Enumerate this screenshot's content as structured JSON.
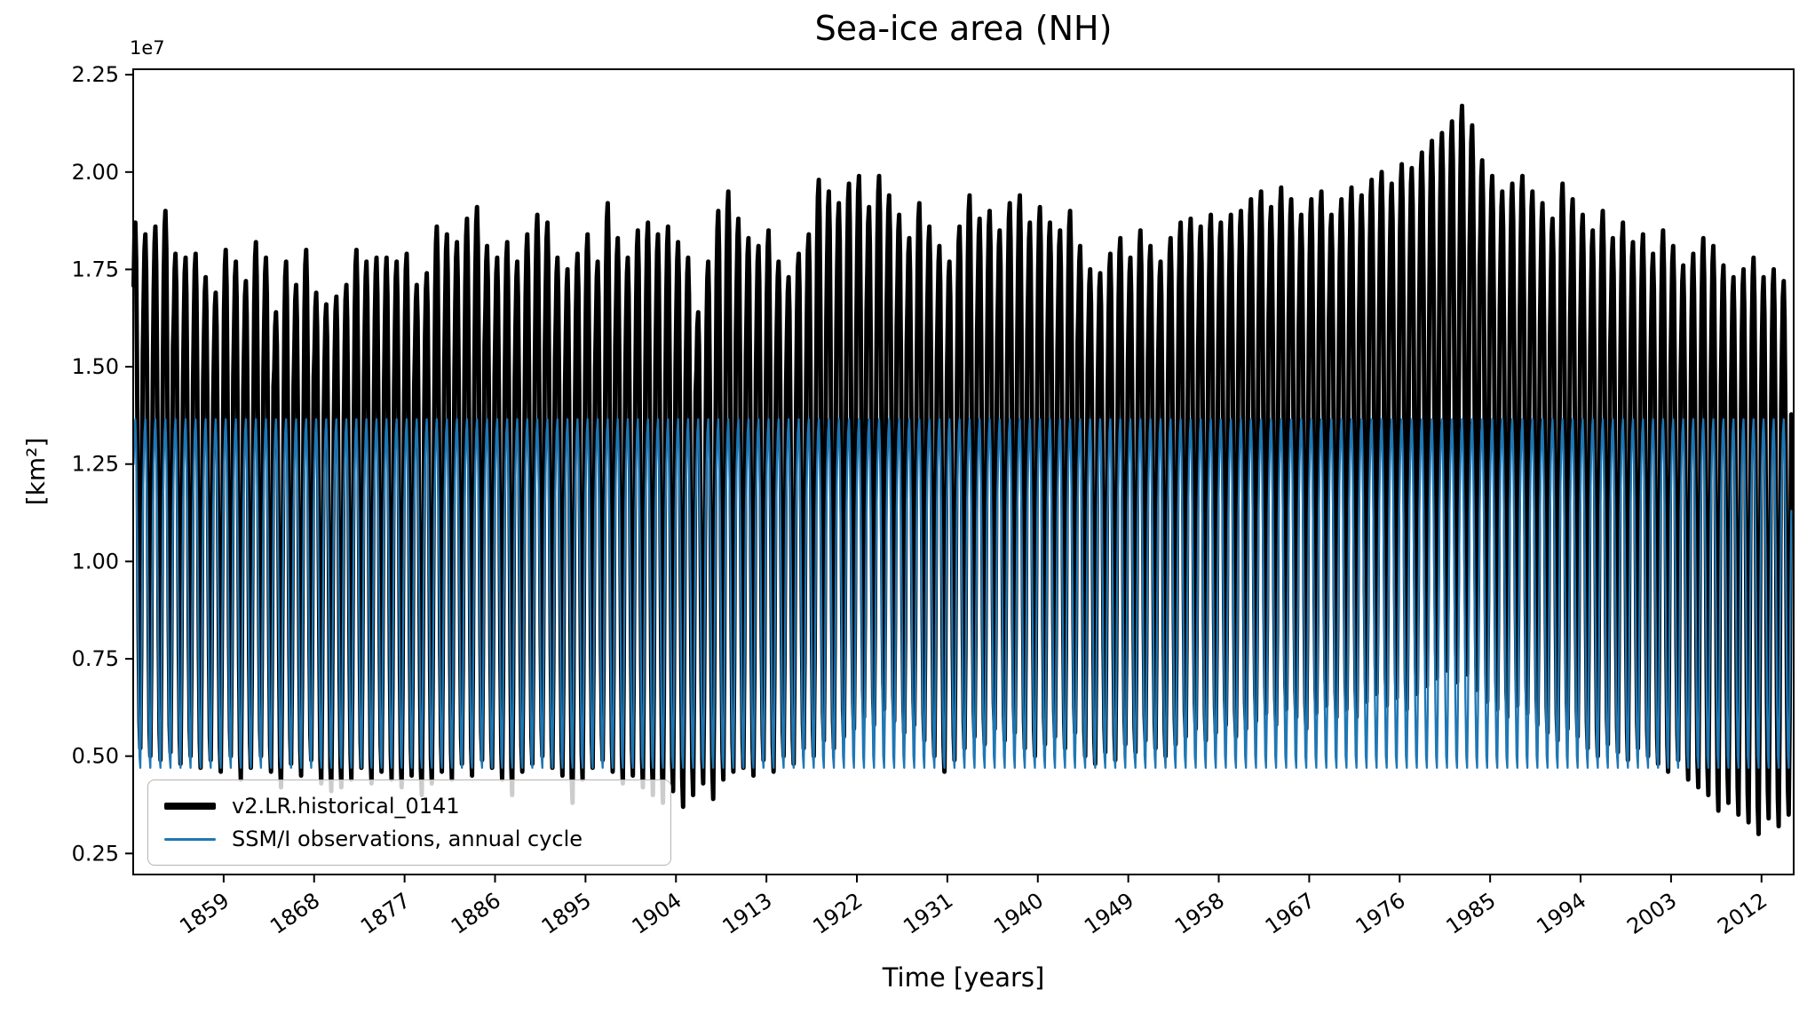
{
  "chart_data": {
    "type": "line",
    "title": "Sea-ice area (NH)",
    "xlabel": "Time [years]",
    "ylabel": "[km²]",
    "y_offset_label": "1e7",
    "y_unit": "km², values in units of 1e7",
    "grid": false,
    "legend_position": "lower left",
    "xlim": [
      1850,
      2015.2
    ],
    "ylim": [
      0.196,
      2.264
    ],
    "x_ticks": [
      1859,
      1868,
      1877,
      1886,
      1895,
      1904,
      1913,
      1922,
      1931,
      1940,
      1949,
      1958,
      1967,
      1976,
      1985,
      1994,
      2003,
      2012
    ],
    "y_ticks": [
      0.25,
      0.5,
      0.75,
      1.0,
      1.25,
      1.5,
      1.75,
      2.0,
      2.25
    ],
    "series": [
      {
        "name": "v2.LR.historical_0141",
        "color": "#000000",
        "linewidth": 5,
        "legend_linewidth": 8,
        "start_year": 1850,
        "seasonal_shape": [
          0.88,
          0.97,
          1.0,
          0.93,
          0.75,
          0.5,
          0.22,
          0.05,
          0.0,
          0.18,
          0.5,
          0.75
        ],
        "annual_max": [
          1.87,
          1.84,
          1.86,
          1.9,
          1.79,
          1.78,
          1.79,
          1.73,
          1.69,
          1.8,
          1.77,
          1.72,
          1.82,
          1.78,
          1.64,
          1.77,
          1.71,
          1.8,
          1.69,
          1.66,
          1.68,
          1.71,
          1.8,
          1.77,
          1.78,
          1.78,
          1.77,
          1.79,
          1.71,
          1.74,
          1.86,
          1.84,
          1.82,
          1.88,
          1.91,
          1.81,
          1.78,
          1.82,
          1.77,
          1.84,
          1.89,
          1.87,
          1.78,
          1.75,
          1.79,
          1.84,
          1.77,
          1.92,
          1.83,
          1.78,
          1.85,
          1.87,
          1.84,
          1.86,
          1.82,
          1.78,
          1.64,
          1.77,
          1.9,
          1.95,
          1.88,
          1.83,
          1.81,
          1.85,
          1.77,
          1.73,
          1.79,
          1.84,
          1.98,
          1.95,
          1.92,
          1.97,
          1.99,
          1.91,
          1.99,
          1.94,
          1.89,
          1.83,
          1.92,
          1.86,
          1.81,
          1.77,
          1.86,
          1.94,
          1.88,
          1.9,
          1.85,
          1.92,
          1.94,
          1.87,
          1.91,
          1.87,
          1.85,
          1.9,
          1.81,
          1.75,
          1.74,
          1.79,
          1.83,
          1.78,
          1.85,
          1.81,
          1.77,
          1.83,
          1.87,
          1.88,
          1.86,
          1.89,
          1.87,
          1.89,
          1.9,
          1.93,
          1.95,
          1.91,
          1.96,
          1.93,
          1.89,
          1.93,
          1.95,
          1.89,
          1.93,
          1.96,
          1.94,
          1.98,
          2.0,
          1.97,
          2.02,
          2.01,
          2.05,
          2.08,
          2.1,
          2.13,
          2.17,
          2.12,
          2.03,
          1.99,
          1.95,
          1.97,
          1.99,
          1.95,
          1.92,
          1.88,
          1.97,
          1.93,
          1.89,
          1.85,
          1.9,
          1.83,
          1.87,
          1.82,
          1.84,
          1.79,
          1.85,
          1.81,
          1.76,
          1.79,
          1.83,
          1.81,
          1.76,
          1.73,
          1.75,
          1.78,
          1.73,
          1.75,
          1.72
        ],
        "annual_min": [
          0.52,
          0.5,
          0.49,
          0.51,
          0.48,
          0.5,
          0.47,
          0.49,
          0.46,
          0.5,
          0.44,
          0.47,
          0.5,
          0.46,
          0.42,
          0.48,
          0.45,
          0.49,
          0.43,
          0.41,
          0.42,
          0.44,
          0.47,
          0.43,
          0.46,
          0.44,
          0.42,
          0.45,
          0.4,
          0.43,
          0.46,
          0.44,
          0.48,
          0.45,
          0.49,
          0.47,
          0.44,
          0.4,
          0.46,
          0.48,
          0.5,
          0.47,
          0.45,
          0.38,
          0.44,
          0.47,
          0.49,
          0.46,
          0.43,
          0.45,
          0.42,
          0.4,
          0.38,
          0.41,
          0.37,
          0.4,
          0.43,
          0.39,
          0.44,
          0.46,
          0.47,
          0.45,
          0.49,
          0.46,
          0.5,
          0.48,
          0.52,
          0.5,
          0.54,
          0.52,
          0.55,
          0.57,
          0.6,
          0.58,
          0.62,
          0.59,
          0.56,
          0.58,
          0.54,
          0.5,
          0.46,
          0.49,
          0.52,
          0.55,
          0.53,
          0.57,
          0.54,
          0.56,
          0.52,
          0.5,
          0.53,
          0.55,
          0.52,
          0.56,
          0.5,
          0.48,
          0.51,
          0.49,
          0.53,
          0.51,
          0.54,
          0.52,
          0.5,
          0.53,
          0.55,
          0.57,
          0.54,
          0.56,
          0.58,
          0.55,
          0.57,
          0.59,
          0.61,
          0.58,
          0.62,
          0.6,
          0.57,
          0.61,
          0.63,
          0.6,
          0.62,
          0.6,
          0.64,
          0.66,
          0.63,
          0.65,
          0.62,
          0.66,
          0.68,
          0.7,
          0.72,
          0.69,
          0.71,
          0.67,
          0.64,
          0.62,
          0.6,
          0.63,
          0.61,
          0.58,
          0.56,
          0.54,
          0.57,
          0.55,
          0.52,
          0.5,
          0.53,
          0.51,
          0.49,
          0.52,
          0.5,
          0.48,
          0.46,
          0.49,
          0.44,
          0.42,
          0.4,
          0.36,
          0.38,
          0.35,
          0.33,
          0.3,
          0.34,
          0.32,
          0.35
        ]
      },
      {
        "name": "SSM/I observations, annual cycle",
        "color": "#1f77b4",
        "linewidth": 2.3,
        "legend_linewidth": 3,
        "start_year": 1850,
        "end_year": 2015,
        "monthly_climatology": [
          1.25,
          1.33,
          1.365,
          1.29,
          1.12,
          0.9,
          0.65,
          0.5,
          0.47,
          0.62,
          0.89,
          1.13
        ]
      }
    ]
  }
}
